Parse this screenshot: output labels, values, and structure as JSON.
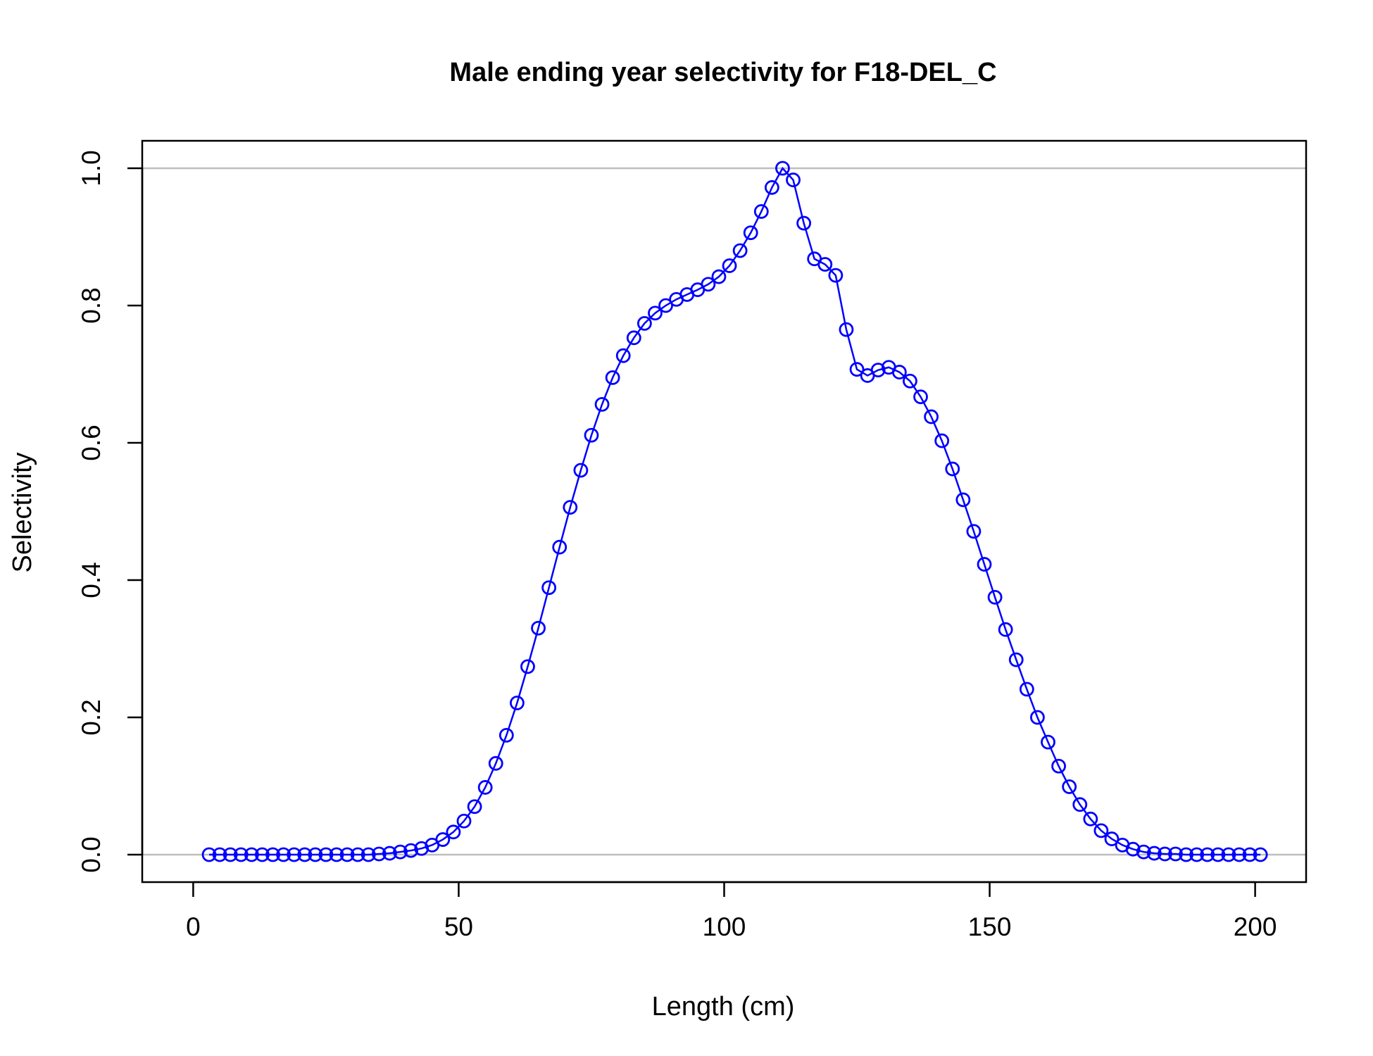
{
  "chart_data": {
    "type": "line",
    "title": "Male ending year selectivity for F18-DEL_C",
    "xlabel": "Length (cm)",
    "ylabel": "Selectivity",
    "xlim": [
      0,
      210
    ],
    "ylim": [
      0,
      1.04
    ],
    "x_ticks": [
      "0",
      "50",
      "100",
      "150",
      "200"
    ],
    "y_ticks": [
      "0.0",
      "0.2",
      "0.4",
      "0.6",
      "0.8",
      "1.0"
    ],
    "reference_lines_y": [
      0,
      1
    ],
    "grid": false,
    "color": "#0000ff",
    "ref_line_color": "#bebebe",
    "series": [
      {
        "x": [
          3,
          5,
          7,
          9,
          11,
          13,
          15,
          17,
          19,
          21,
          23,
          25,
          27,
          29,
          31,
          33,
          35,
          37,
          39,
          41,
          43,
          45,
          47,
          49,
          51,
          53,
          55,
          57,
          59,
          61,
          63,
          65,
          67,
          69,
          71,
          73,
          75,
          77,
          79,
          81,
          83,
          85,
          87,
          89,
          91,
          93,
          95,
          97,
          99,
          101,
          103,
          105,
          107,
          109,
          111,
          113,
          115,
          117,
          119,
          121,
          123,
          125,
          127,
          129,
          131,
          133,
          135,
          137,
          139,
          141,
          143,
          145,
          147,
          149,
          151,
          153,
          155,
          157,
          159,
          161,
          163,
          165,
          167,
          169,
          171,
          173,
          175,
          177,
          179,
          181,
          183,
          185,
          187,
          189,
          191,
          193,
          195,
          197,
          199,
          201
        ],
        "values": [
          0,
          0,
          0,
          0,
          0,
          0,
          0,
          0,
          0,
          0,
          0,
          0,
          0,
          0,
          0,
          0,
          0.001,
          0.002,
          0.004,
          0.006,
          0.009,
          0.014,
          0.022,
          0.033,
          0.049,
          0.07,
          0.098,
          0.133,
          0.174,
          0.221,
          0.274,
          0.33,
          0.389,
          0.448,
          0.506,
          0.56,
          0.611,
          0.656,
          0.695,
          0.727,
          0.753,
          0.774,
          0.789,
          0.8,
          0.809,
          0.816,
          0.823,
          0.831,
          0.842,
          0.858,
          0.88,
          0.906,
          0.937,
          0.972,
          1.0,
          0.983,
          0.92,
          0.868,
          0.86,
          0.844,
          0.765,
          0.707,
          0.698,
          0.706,
          0.71,
          0.703,
          0.69,
          0.667,
          0.638,
          0.603,
          0.562,
          0.517,
          0.471,
          0.423,
          0.375,
          0.328,
          0.284,
          0.241,
          0.2,
          0.164,
          0.129,
          0.099,
          0.073,
          0.052,
          0.035,
          0.023,
          0.014,
          0.008,
          0.004,
          0.002,
          0.001,
          0.001,
          0,
          0,
          0,
          0,
          0,
          0,
          0,
          0
        ]
      }
    ]
  }
}
